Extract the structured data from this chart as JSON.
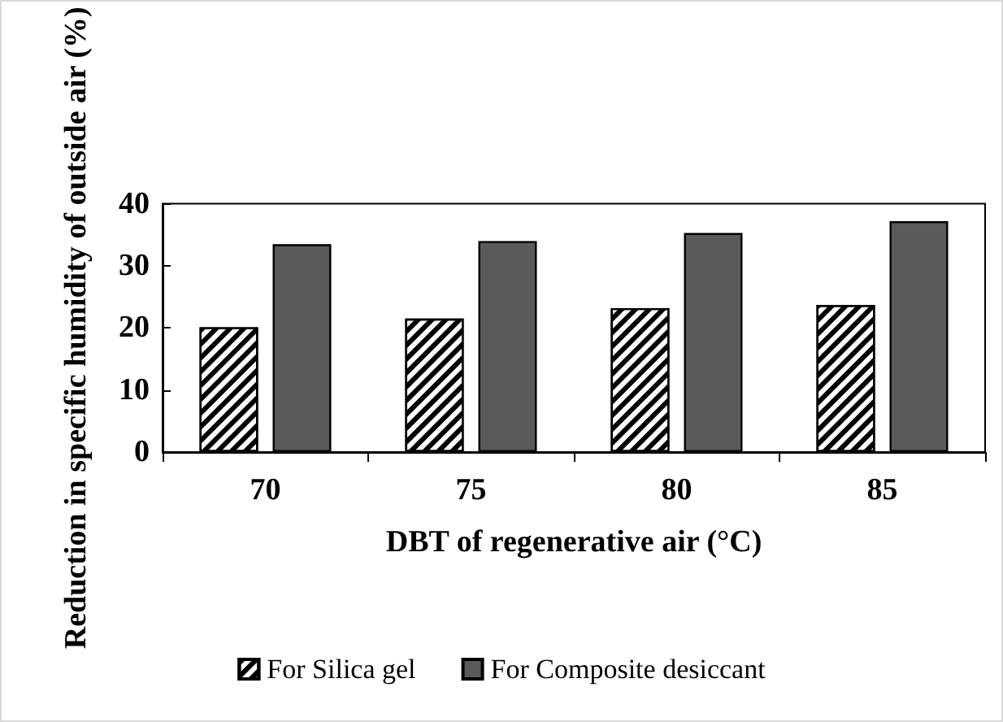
{
  "chart_data": {
    "type": "bar",
    "xlabel": "DBT of regenerative air (°C)",
    "ylabel": "Reduction in specific humidity of outside air (%)",
    "categories": [
      "70",
      "75",
      "80",
      "85"
    ],
    "series": [
      {
        "name": "For Silica gel",
        "color": "#ffffff",
        "values": [
          20.1,
          21.5,
          23.2,
          23.7
        ]
      },
      {
        "name": "For Composite desiccant",
        "color": "#5a5a5a",
        "values": [
          33.5,
          34.0,
          35.3,
          37.2
        ]
      }
    ],
    "ylim": [
      0,
      40
    ],
    "yticks": [
      0,
      10,
      20,
      30,
      40
    ],
    "grid": false,
    "legend": "bottom"
  }
}
